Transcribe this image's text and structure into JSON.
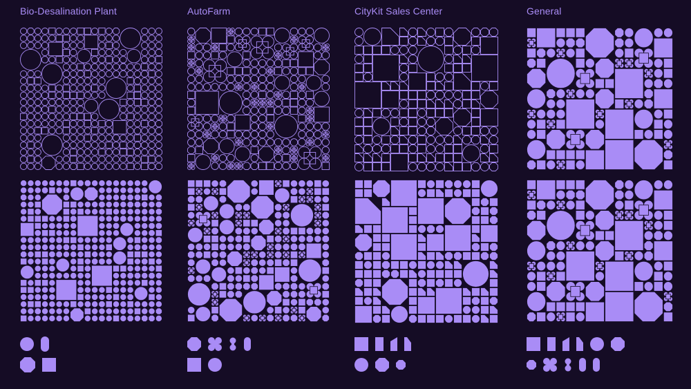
{
  "theme": {
    "background": "#150c25",
    "accent": "#a98cf6",
    "fill": "#a98cf6"
  },
  "panels": [
    {
      "title": "Bio-Desalination Plant",
      "shape_set": [
        "circle",
        "pill",
        "octagon",
        "square"
      ]
    },
    {
      "title": "AutoFarm",
      "shape_set": [
        "octagon",
        "cross",
        "double-dot",
        "pill",
        "square",
        "circle"
      ]
    },
    {
      "title": "CityKit Sales Center",
      "shape_set": [
        "square",
        "half-square",
        "slant",
        "slant",
        "circle",
        "octagon",
        "octagon"
      ]
    },
    {
      "title": "General",
      "shape_set": [
        "square",
        "half-square",
        "slant",
        "slant",
        "circle",
        "octagon",
        "octagon",
        "cross",
        "double-dot",
        "pill",
        "pill"
      ]
    }
  ]
}
